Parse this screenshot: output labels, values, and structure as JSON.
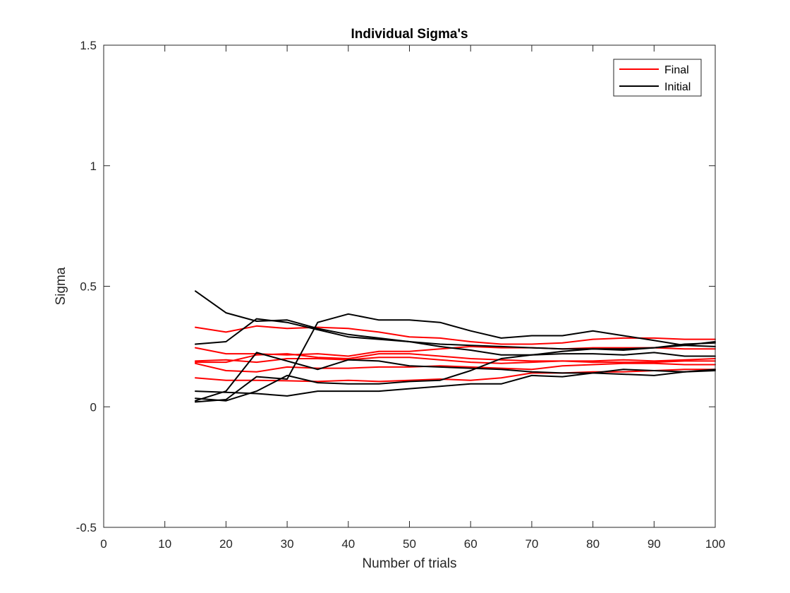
{
  "chart_data": {
    "type": "line",
    "title": "Individual Sigma's",
    "xlabel": "Number of trials",
    "ylabel": "Sigma",
    "xlim": [
      0,
      100
    ],
    "ylim": [
      -0.5,
      1.5
    ],
    "xticks": [
      0,
      10,
      20,
      30,
      40,
      50,
      60,
      70,
      80,
      90,
      100
    ],
    "xtick_labels": [
      "0",
      "10",
      "20",
      "30",
      "40",
      "50",
      "60",
      "70",
      "80",
      "90",
      "100"
    ],
    "yticks": [
      -0.5,
      0,
      0.5,
      1,
      1.5
    ],
    "ytick_labels": [
      "-0.5",
      "0",
      "0.5",
      "1",
      "1.5"
    ],
    "grid": false,
    "legend_position": "top-right",
    "legend": [
      {
        "label": "Final",
        "color": "#ff0000"
      },
      {
        "label": "Initial",
        "color": "#000000"
      }
    ],
    "x": [
      15,
      20,
      25,
      30,
      35,
      40,
      45,
      50,
      55,
      60,
      65,
      70,
      75,
      80,
      85,
      90,
      95,
      100
    ],
    "series": [
      {
        "group": "Final",
        "color": "#ff0000",
        "values": [
          0.33,
          0.31,
          0.335,
          0.325,
          0.33,
          0.325,
          0.31,
          0.29,
          0.285,
          0.27,
          0.26,
          0.26,
          0.265,
          0.28,
          0.285,
          0.285,
          0.28,
          0.28
        ]
      },
      {
        "group": "Final",
        "color": "#ff0000",
        "values": [
          0.245,
          0.22,
          0.22,
          0.215,
          0.22,
          0.21,
          0.23,
          0.23,
          0.24,
          0.25,
          0.245,
          0.245,
          0.24,
          0.245,
          0.245,
          0.245,
          0.24,
          0.24
        ]
      },
      {
        "group": "Final",
        "color": "#ff0000",
        "values": [
          0.185,
          0.185,
          0.215,
          0.22,
          0.205,
          0.2,
          0.22,
          0.22,
          0.21,
          0.2,
          0.195,
          0.19,
          0.19,
          0.185,
          0.185,
          0.185,
          0.19,
          0.19
        ]
      },
      {
        "group": "Final",
        "color": "#ff0000",
        "values": [
          0.18,
          0.15,
          0.145,
          0.165,
          0.16,
          0.16,
          0.165,
          0.165,
          0.17,
          0.165,
          0.16,
          0.155,
          0.17,
          0.175,
          0.18,
          0.18,
          0.175,
          0.175
        ]
      },
      {
        "group": "Final",
        "color": "#ff0000",
        "values": [
          0.12,
          0.11,
          0.11,
          0.108,
          0.105,
          0.11,
          0.105,
          0.11,
          0.115,
          0.11,
          0.12,
          0.14,
          0.14,
          0.145,
          0.145,
          0.15,
          0.155,
          0.155
        ]
      },
      {
        "group": "Final",
        "color": "#ff0000",
        "values": [
          0.19,
          0.195,
          0.185,
          0.2,
          0.2,
          0.195,
          0.205,
          0.205,
          0.195,
          0.185,
          0.18,
          0.185,
          0.19,
          0.19,
          0.195,
          0.19,
          0.195,
          0.2
        ]
      },
      {
        "group": "Initial",
        "color": "#000000",
        "values": [
          0.48,
          0.39,
          0.355,
          0.36,
          0.325,
          0.3,
          0.285,
          0.27,
          0.26,
          0.255,
          0.25,
          0.245,
          0.24,
          0.24,
          0.24,
          0.245,
          0.255,
          0.27
        ]
      },
      {
        "group": "Initial",
        "color": "#000000",
        "values": [
          0.26,
          0.27,
          0.365,
          0.35,
          0.32,
          0.29,
          0.28,
          0.27,
          0.25,
          0.235,
          0.215,
          0.215,
          0.22,
          0.22,
          0.215,
          0.225,
          0.21,
          0.21
        ]
      },
      {
        "group": "Initial",
        "color": "#000000",
        "values": [
          0.02,
          0.03,
          0.125,
          0.115,
          0.35,
          0.385,
          0.36,
          0.36,
          0.35,
          0.315,
          0.285,
          0.295,
          0.295,
          0.315,
          0.295,
          0.275,
          0.255,
          0.25
        ]
      },
      {
        "group": "Initial",
        "color": "#000000",
        "values": [
          0.025,
          0.065,
          0.225,
          0.19,
          0.155,
          0.195,
          0.19,
          0.17,
          0.165,
          0.16,
          0.155,
          0.145,
          0.14,
          0.14,
          0.135,
          0.13,
          0.145,
          0.155
        ]
      },
      {
        "group": "Initial",
        "color": "#000000",
        "values": [
          0.035,
          0.025,
          0.065,
          0.13,
          0.1,
          0.095,
          0.095,
          0.105,
          0.11,
          0.15,
          0.2,
          0.215,
          0.23,
          0.24,
          0.235,
          0.245,
          0.26,
          0.265
        ]
      },
      {
        "group": "Initial",
        "color": "#000000",
        "values": [
          0.065,
          0.06,
          0.055,
          0.045,
          0.065,
          0.065,
          0.065,
          0.075,
          0.085,
          0.095,
          0.095,
          0.13,
          0.125,
          0.14,
          0.155,
          0.15,
          0.145,
          0.15
        ]
      }
    ]
  }
}
